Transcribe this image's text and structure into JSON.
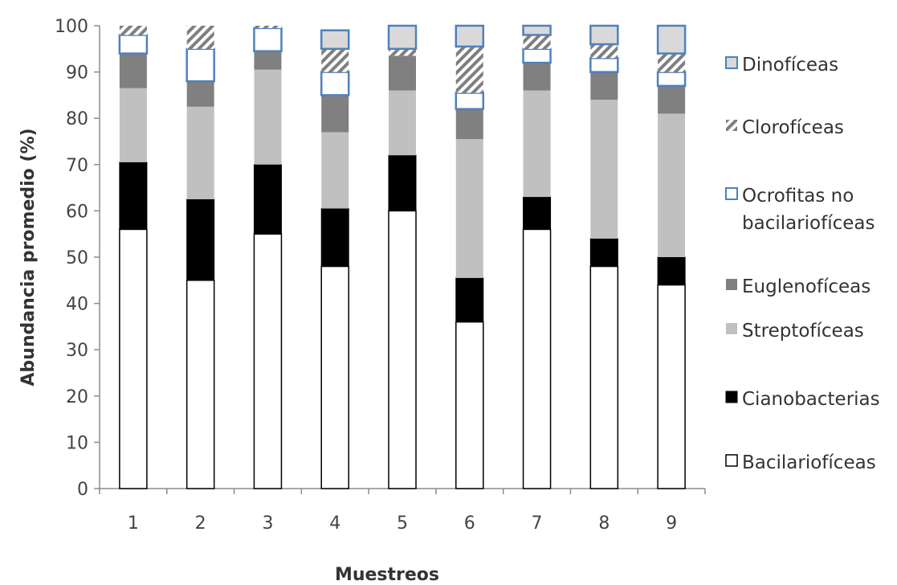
{
  "chart_data": {
    "type": "bar",
    "stacked": true,
    "orientation": "vertical",
    "categories": [
      "1",
      "2",
      "3",
      "4",
      "5",
      "6",
      "7",
      "8",
      "9"
    ],
    "series": [
      {
        "name": "Bacilariofíceas",
        "key": "bac",
        "values": [
          56,
          45,
          55,
          48,
          60,
          36,
          56,
          48,
          44
        ]
      },
      {
        "name": "Cianobacterias",
        "key": "cia",
        "values": [
          14.5,
          17.5,
          15,
          12.5,
          12,
          9.5,
          7,
          6,
          6
        ]
      },
      {
        "name": "Streptofíceas",
        "key": "str",
        "values": [
          16,
          20,
          20.5,
          16.5,
          14,
          30,
          23,
          30,
          31
        ]
      },
      {
        "name": "Euglenofíceas",
        "key": "eug",
        "values": [
          7.5,
          5.5,
          4,
          8,
          7.5,
          6.5,
          6,
          6,
          6
        ]
      },
      {
        "name": "Ocrofitas no bacilariofíceas",
        "key": "ocr",
        "values": [
          4,
          7,
          5,
          5,
          0,
          3.5,
          3,
          3,
          3
        ]
      },
      {
        "name": "Clorofíceas",
        "key": "clo",
        "values": [
          2,
          5,
          1,
          5,
          1.5,
          10,
          3,
          3,
          4
        ]
      },
      {
        "name": "Dinofíceas",
        "key": "din",
        "values": [
          0,
          0,
          0,
          4,
          5,
          4.5,
          2,
          4,
          6
        ]
      }
    ],
    "ylabel": "Abundancia promedio (%)",
    "xlabel": "Muestreos",
    "ylim": [
      0,
      100
    ],
    "yticks": [
      0,
      10,
      20,
      30,
      40,
      50,
      60,
      70,
      80,
      90,
      100
    ],
    "grid": false,
    "legend_position": "right",
    "legend_order": [
      "din",
      "clo",
      "ocr",
      "eug",
      "str",
      "cia",
      "bac"
    ],
    "legend_lines": {
      "din": [
        "Dinofíceas"
      ],
      "clo": [
        "Clorofíceas"
      ],
      "ocr": [
        "Ocrofitas no",
        "bacilariofíceas"
      ],
      "eug": [
        "Euglenofíceas"
      ],
      "str": [
        "Streptofíceas"
      ],
      "cia": [
        "Cianobacterias"
      ],
      "bac": [
        "Bacilariofíceas"
      ]
    },
    "colors": {
      "bac": "#ffffff",
      "cia": "#000000",
      "str": "#c0c0c0",
      "eug": "#808080",
      "ocr": "#ffffff",
      "clo": "#b8b8b8",
      "din": "#d9d9d9",
      "ocr_border": "#4f81bd",
      "din_border": "#4f81bd"
    }
  }
}
